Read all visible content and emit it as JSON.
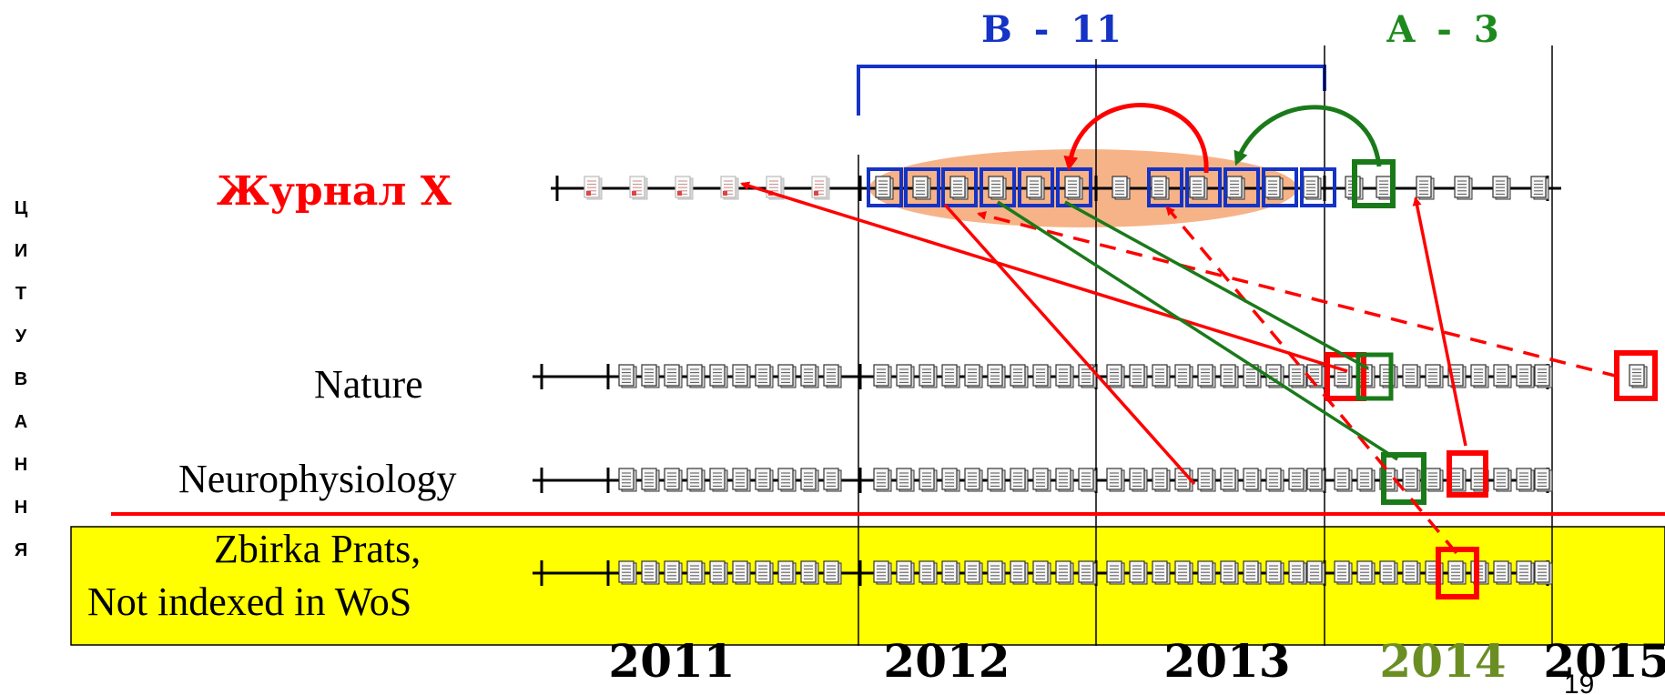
{
  "header": {
    "b_label": "B",
    "b_dash": "-",
    "b_count": "11",
    "a_label": "A",
    "a_dash": "-",
    "a_count": "3",
    "b_color": "#1533c4",
    "a_color": "#1e8a1e"
  },
  "side_label": {
    "letters": [
      "Ц",
      "И",
      "Т",
      "У",
      "В",
      "А",
      "Н",
      "Н",
      "Я"
    ]
  },
  "journals": [
    {
      "name": "Журнал X",
      "color": "#ff0000"
    },
    {
      "name": "Nature"
    },
    {
      "name": "Neurophysiology"
    },
    {
      "name_line1": "Zbirka Prats,",
      "name_line2": "Not indexed in WoS"
    }
  ],
  "years": [
    {
      "label": "2011"
    },
    {
      "label": "2012"
    },
    {
      "label": "2013"
    },
    {
      "label": "2014",
      "color": "#6b8e23"
    },
    {
      "label": "2015"
    }
  ],
  "page_number": "19",
  "colors": {
    "red": "#ff0000",
    "green": "#1a7a1a",
    "blue": "#1533c4",
    "highlight": "#f7b388",
    "band": "#ffff00"
  },
  "icons": {
    "paper": "document-icon"
  }
}
